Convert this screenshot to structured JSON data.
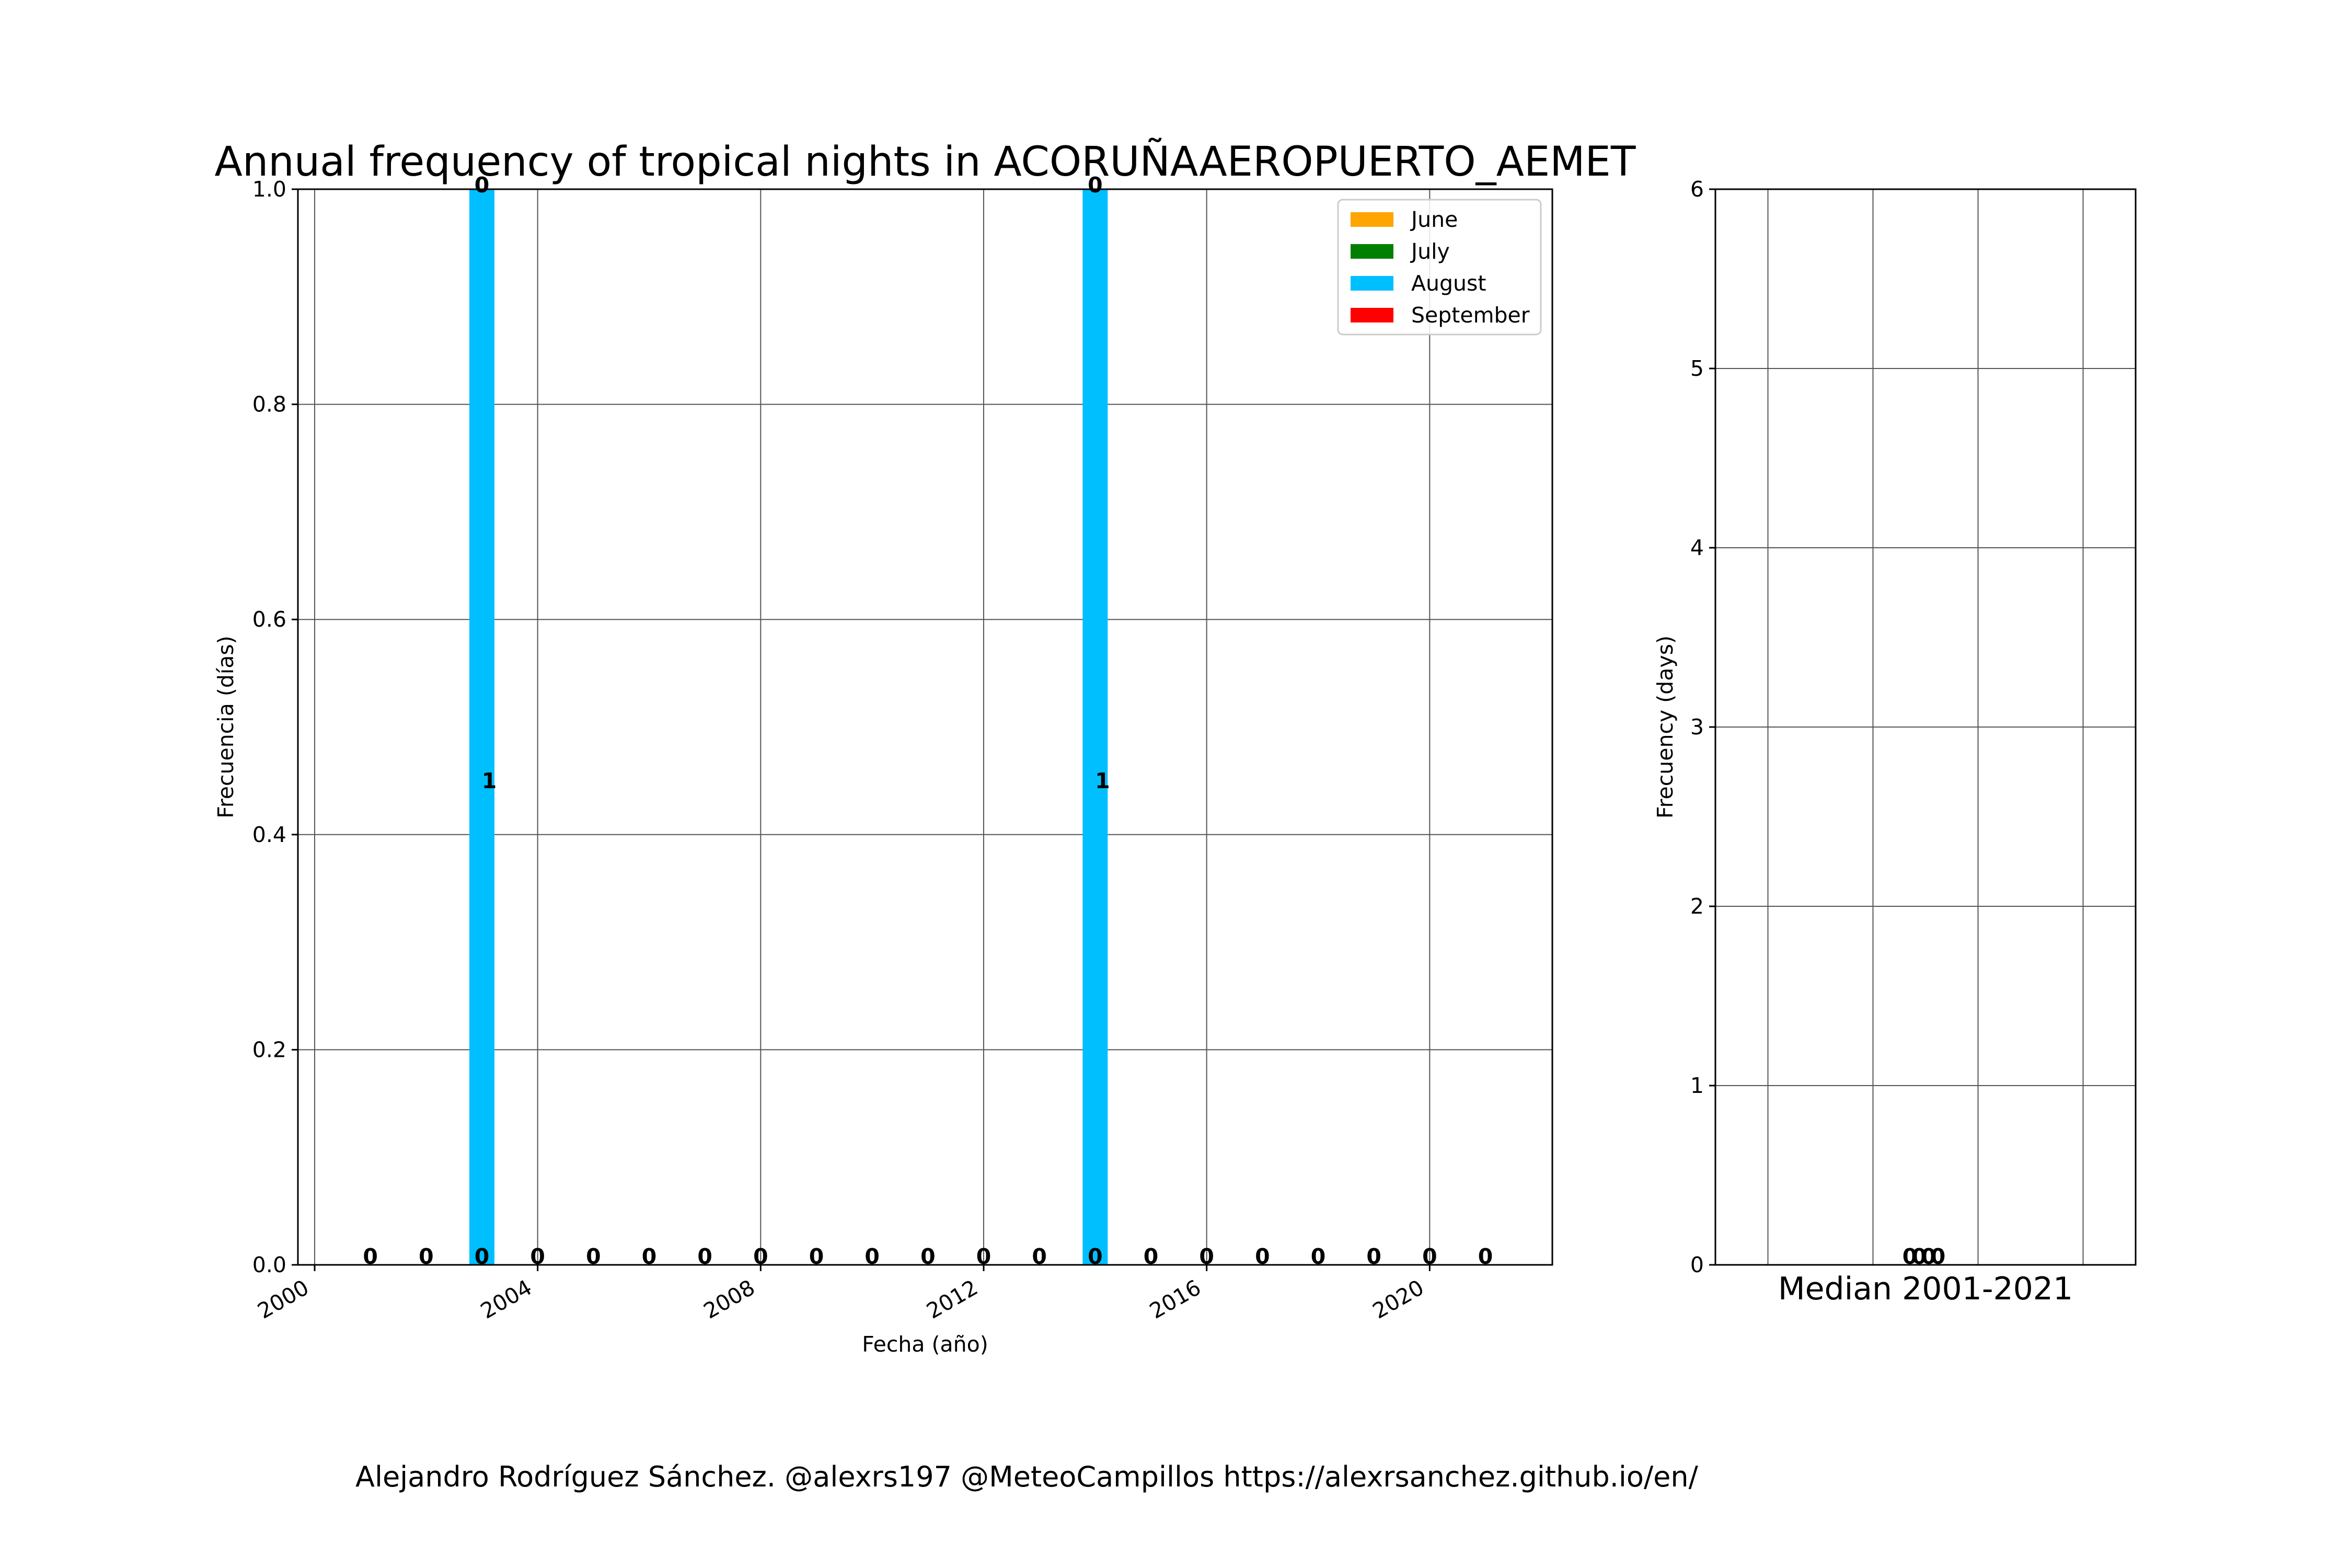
{
  "title": "Annual frequency of tropical nights in ACORUÑAAEROPUERTO_AEMET",
  "credit": "Alejandro Rodríguez Sánchez. @alexrs197 @MeteoCampillos   https://alexrsanchez.github.io/en/",
  "colors": {
    "June": "#FFA500",
    "July": "#008000",
    "August": "#00BFFF",
    "September": "#FF0000"
  },
  "chart_data": [
    {
      "type": "bar",
      "stacked": true,
      "title": "Annual frequency of tropical nights in ACORUÑAAEROPUERTO_AEMET",
      "xlabel": "Fecha (año)",
      "ylabel": "Frecuencia (días)",
      "xlim": [
        1999.7,
        2022.2
      ],
      "ylim": [
        0,
        1.0
      ],
      "xticks": [
        "2000",
        "2004",
        "2008",
        "2012",
        "2016",
        "2020"
      ],
      "yticks": [
        "0.0",
        "0.2",
        "0.4",
        "0.6",
        "0.8",
        "1.0"
      ],
      "grid": true,
      "legend": "top-right",
      "x": [
        2001,
        2002,
        2003,
        2004,
        2005,
        2006,
        2007,
        2008,
        2009,
        2010,
        2011,
        2012,
        2013,
        2014,
        2015,
        2016,
        2017,
        2018,
        2019,
        2020,
        2021
      ],
      "series": [
        {
          "name": "June",
          "values": [
            0,
            0,
            0,
            0,
            0,
            0,
            0,
            0,
            0,
            0,
            0,
            0,
            0,
            0,
            0,
            0,
            0,
            0,
            0,
            0,
            0
          ]
        },
        {
          "name": "July",
          "values": [
            0,
            0,
            0,
            0,
            0,
            0,
            0,
            0,
            0,
            0,
            0,
            0,
            0,
            0,
            0,
            0,
            0,
            0,
            0,
            0,
            0
          ]
        },
        {
          "name": "August",
          "values": [
            0,
            0,
            1,
            0,
            0,
            0,
            0,
            0,
            0,
            0,
            0,
            0,
            0,
            1,
            0,
            0,
            0,
            0,
            0,
            0,
            0
          ]
        },
        {
          "name": "September",
          "values": [
            0,
            0,
            0,
            0,
            0,
            0,
            0,
            0,
            0,
            0,
            0,
            0,
            0,
            0,
            0,
            0,
            0,
            0,
            0,
            0,
            0
          ]
        }
      ],
      "bar_labels": {
        "base": [
          "0",
          "0",
          "0",
          "0",
          "0",
          "0",
          "0",
          "0",
          "0",
          "0",
          "0",
          "0",
          "0",
          "0",
          "0",
          "0",
          "0",
          "0",
          "0",
          "0",
          "0"
        ],
        "mid": [
          {
            "x": 2003,
            "y": 0.45,
            "text": "1"
          },
          {
            "x": 2014,
            "y": 0.45,
            "text": "1"
          }
        ],
        "top": [
          {
            "x": 2003,
            "y": 1.0,
            "text": "0"
          },
          {
            "x": 2014,
            "y": 1.0,
            "text": "0"
          }
        ]
      }
    },
    {
      "type": "bar",
      "stacked": true,
      "title": "Median 2001-2021",
      "xlabel": "Median 2001-2021",
      "ylabel": "Frecuency (days)",
      "ylim": [
        0,
        6
      ],
      "yticks": [
        "0",
        "1",
        "2",
        "3",
        "4",
        "5",
        "6"
      ],
      "grid": true,
      "values": {
        "June": 0,
        "July": 0,
        "August": 0,
        "September": 0
      },
      "value_labels": [
        "0",
        "0",
        "0",
        "0"
      ]
    }
  ]
}
